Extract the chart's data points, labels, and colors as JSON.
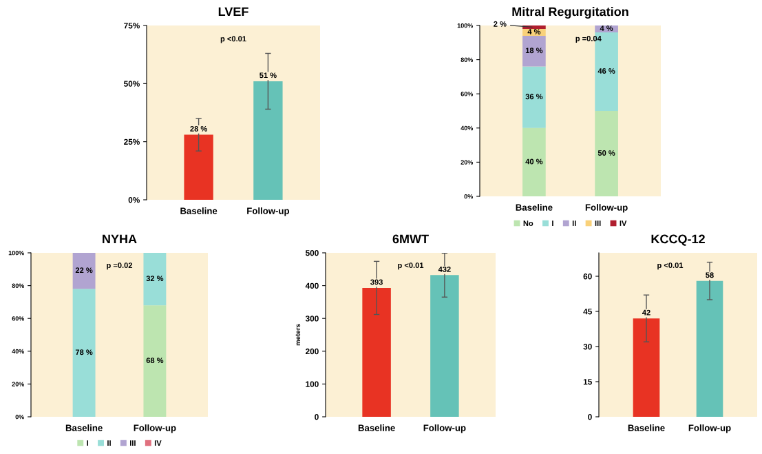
{
  "chart_data": [
    {
      "type": "bar",
      "title": "LVEF",
      "categories": [
        "Baseline",
        "Follow-up"
      ],
      "values": [
        28,
        51
      ],
      "colors": [
        "#e83323",
        "#65c2b7"
      ],
      "errors": [
        7,
        12
      ],
      "value_labels": [
        "28 %",
        "51 %"
      ],
      "ylim": [
        0,
        75
      ],
      "yticks": [
        {
          "value": 0,
          "label": "0%"
        },
        {
          "value": 25,
          "label": "25%"
        },
        {
          "value": 50,
          "label": "50%"
        },
        {
          "value": 75,
          "label": "75%"
        }
      ],
      "annotations": [
        "p <0.01"
      ],
      "grid": false,
      "legend": false
    },
    {
      "type": "bar",
      "title": "Mitral Regurgitation",
      "stacked": true,
      "categories": [
        "Baseline",
        "Follow-up"
      ],
      "series": [
        {
          "name": "No",
          "color": "#bde5b0",
          "values": [
            40,
            50
          ],
          "value_labels": [
            "40 %",
            "50 %"
          ]
        },
        {
          "name": "I",
          "color": "#99ded8",
          "values": [
            36,
            46
          ],
          "value_labels": [
            "36 %",
            "46 %"
          ]
        },
        {
          "name": "II",
          "color": "#b1a4d1",
          "values": [
            18,
            4
          ],
          "value_labels": [
            "18 %",
            "4 %"
          ]
        },
        {
          "name": "III",
          "color": "#f9d17a",
          "values": [
            4,
            0
          ],
          "value_labels": [
            "4 %",
            null
          ]
        },
        {
          "name": "IV",
          "color": "#b01e2e",
          "values": [
            2,
            0
          ],
          "value_labels": [
            "2 %",
            null
          ]
        }
      ],
      "ylim": [
        0,
        100
      ],
      "yticks": [
        {
          "value": 0,
          "label": "0%"
        },
        {
          "value": 20,
          "label": "20%"
        },
        {
          "value": 40,
          "label": "40%"
        },
        {
          "value": 60,
          "label": "60%"
        },
        {
          "value": 80,
          "label": "80%"
        },
        {
          "value": 100,
          "label": "100%"
        }
      ],
      "annotations": [
        "p =0.04"
      ],
      "grid": false,
      "legend": "bottom"
    },
    {
      "type": "bar",
      "title": "NYHA",
      "stacked": true,
      "categories": [
        "Baseline",
        "Follow-up"
      ],
      "series": [
        {
          "name": "I",
          "color": "#bde5b0",
          "values": [
            0,
            68
          ],
          "value_labels": [
            null,
            "68 %"
          ]
        },
        {
          "name": "II",
          "color": "#99ded8",
          "values": [
            78,
            32
          ],
          "value_labels": [
            "78 %",
            "32 %"
          ]
        },
        {
          "name": "III",
          "color": "#b1a4d1",
          "values": [
            22,
            0
          ],
          "value_labels": [
            "22 %",
            null
          ]
        },
        {
          "name": "IV",
          "color": "#e0707e",
          "values": [
            0,
            0
          ],
          "value_labels": [
            null,
            null
          ]
        }
      ],
      "ylim": [
        0,
        100
      ],
      "yticks": [
        {
          "value": 0,
          "label": "0%"
        },
        {
          "value": 20,
          "label": "20%"
        },
        {
          "value": 40,
          "label": "40%"
        },
        {
          "value": 60,
          "label": "60%"
        },
        {
          "value": 80,
          "label": "80%"
        },
        {
          "value": 100,
          "label": "100%"
        }
      ],
      "annotations": [
        "p =0.02"
      ],
      "grid": false,
      "legend": "bottom"
    },
    {
      "type": "bar",
      "title": "6MWT",
      "ylabel": "meters",
      "categories": [
        "Baseline",
        "Follow-up"
      ],
      "values": [
        393,
        432
      ],
      "colors": [
        "#e83323",
        "#65c2b7"
      ],
      "errors": [
        81,
        67
      ],
      "data_labels": true,
      "ylim": [
        0,
        500
      ],
      "yticks": [
        0,
        100,
        200,
        300,
        400,
        500
      ],
      "annotations": [
        "p <0.01"
      ],
      "grid": false,
      "legend": false
    },
    {
      "type": "bar",
      "title": "KCCQ-12",
      "categories": [
        "Baseline",
        "Follow-up"
      ],
      "values": [
        42,
        58
      ],
      "colors": [
        "#e83323",
        "#65c2b7"
      ],
      "errors": [
        10,
        8
      ],
      "data_labels": true,
      "ylim": [
        0,
        70
      ],
      "yticks": [
        0,
        15,
        30,
        45,
        60
      ],
      "annotations": [
        "p <0.01"
      ],
      "grid": false,
      "legend": false
    }
  ]
}
